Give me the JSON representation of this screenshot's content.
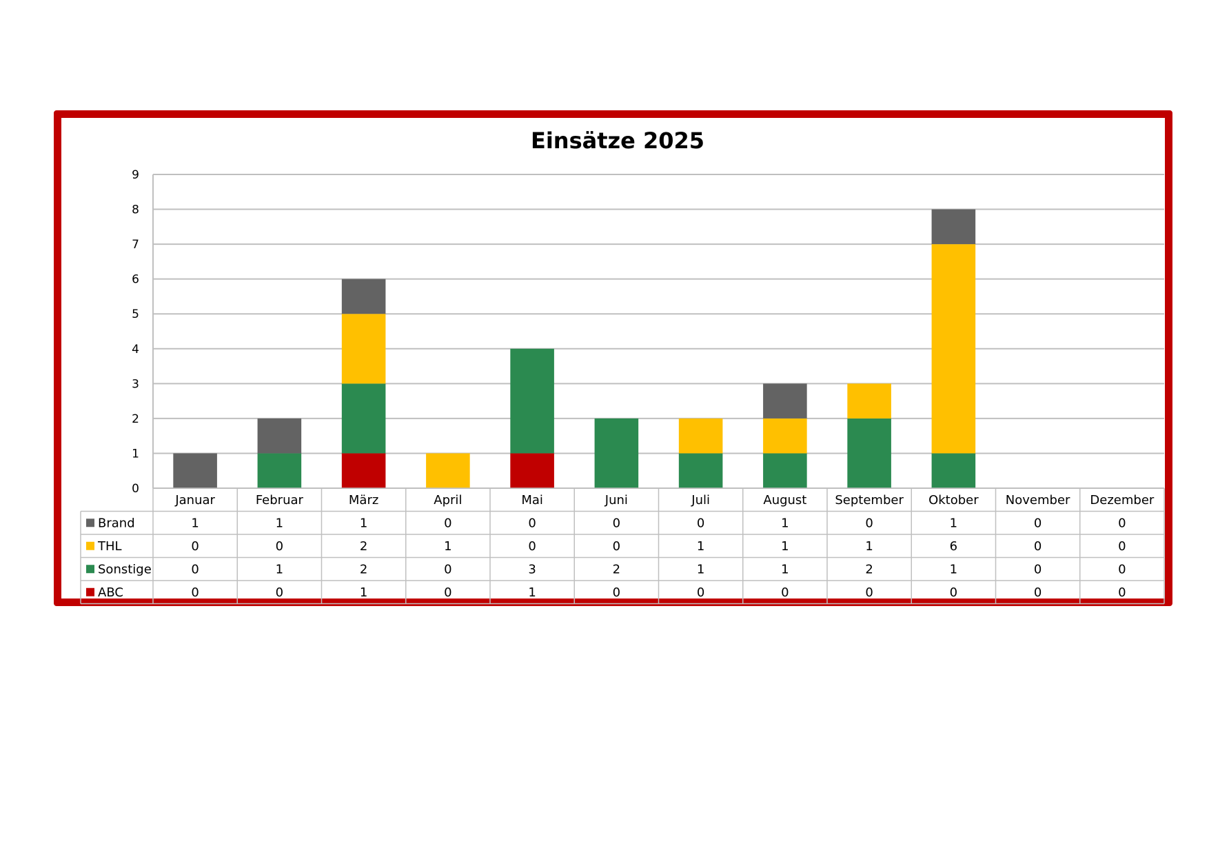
{
  "chart_data": {
    "type": "bar",
    "stacked": true,
    "title": "Einsätze 2025",
    "categories": [
      "Januar",
      "Februar",
      "März",
      "April",
      "Mai",
      "Juni",
      "Juli",
      "August",
      "September",
      "Oktober",
      "November",
      "Dezember"
    ],
    "series": [
      {
        "name": "ABC",
        "color": "#c00000",
        "values": [
          0,
          0,
          1,
          0,
          1,
          0,
          0,
          0,
          0,
          0,
          0,
          0
        ]
      },
      {
        "name": "Sonstige",
        "color": "#2b8a50",
        "values": [
          0,
          1,
          2,
          0,
          3,
          2,
          1,
          1,
          2,
          1,
          0,
          0
        ]
      },
      {
        "name": "THL",
        "color": "#ffc000",
        "values": [
          0,
          0,
          2,
          1,
          0,
          0,
          1,
          1,
          1,
          6,
          0,
          0
        ]
      },
      {
        "name": "Brand",
        "color": "#636363",
        "values": [
          1,
          1,
          1,
          0,
          0,
          0,
          0,
          1,
          0,
          1,
          0,
          0
        ]
      }
    ],
    "table_order": [
      "Brand",
      "THL",
      "Sonstige",
      "ABC"
    ],
    "ylim": [
      0,
      9
    ],
    "yticks": [
      0,
      1,
      2,
      3,
      4,
      5,
      6,
      7,
      8,
      9
    ],
    "grid": true,
    "legend": "data-table"
  },
  "frame_color": "#c00000"
}
